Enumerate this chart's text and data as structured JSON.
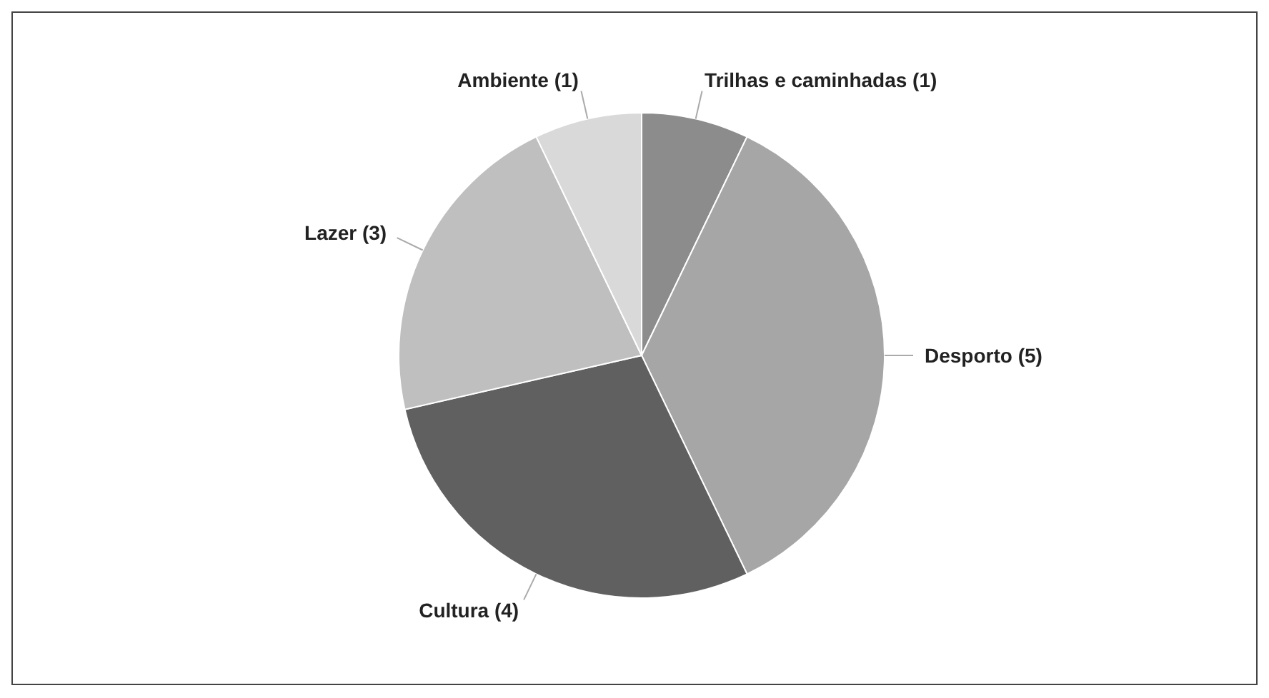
{
  "chart_data": {
    "type": "pie",
    "categories": [
      "Trilhas e caminhadas (1)",
      "Desporto (5)",
      "Cultura (4)",
      "Lazer (3)",
      "Ambiente (1)"
    ],
    "values": [
      1,
      5,
      4,
      3,
      1
    ],
    "colors": [
      "#8c8c8c",
      "#a6a6a6",
      "#606060",
      "#bfbfbf",
      "#d9d9d9"
    ],
    "legend": false
  }
}
